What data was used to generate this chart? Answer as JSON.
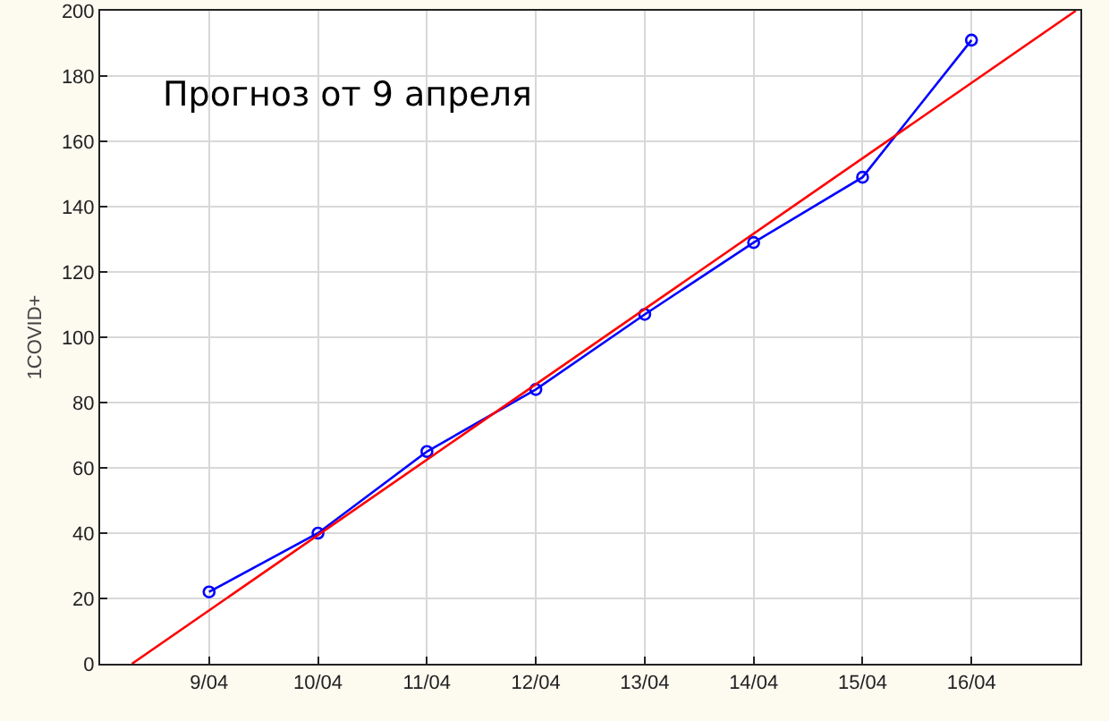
{
  "chart_data": {
    "type": "line",
    "ylabel": "1COVID+",
    "annotations": [
      "Прогноз от 9 апреля"
    ],
    "x": [
      "--04-09",
      "--04-10",
      "--04-11",
      "--04-12",
      "--04-13",
      "--04-14",
      "--04-15",
      "--04-16"
    ],
    "series": [
      {
        "color": "#0000ff",
        "marker": "circle",
        "values": [
          22,
          40,
          65,
          84,
          107,
          129,
          149,
          191
        ]
      },
      {
        "color": "#ff0000",
        "marker": "none",
        "x": [
          "--04-08T07:00",
          "--04-16T23:00"
        ],
        "values": [
          0,
          200
        ]
      }
    ],
    "xlim": [
      "--04-08",
      "--04-17"
    ],
    "xticks": [
      {
        "value": "--04-09",
        "label": "9/04"
      },
      {
        "value": "--04-10",
        "label": "10/04"
      },
      {
        "value": "--04-11",
        "label": "11/04"
      },
      {
        "value": "--04-12",
        "label": "12/04"
      },
      {
        "value": "--04-13",
        "label": "13/04"
      },
      {
        "value": "--04-14",
        "label": "14/04"
      },
      {
        "value": "--04-15",
        "label": "15/04"
      },
      {
        "value": "--04-16",
        "label": "16/04"
      }
    ],
    "ylim": [
      0,
      200
    ],
    "yticks": [
      0,
      20,
      40,
      60,
      80,
      100,
      120,
      140,
      160,
      180,
      200
    ],
    "grid": true
  }
}
